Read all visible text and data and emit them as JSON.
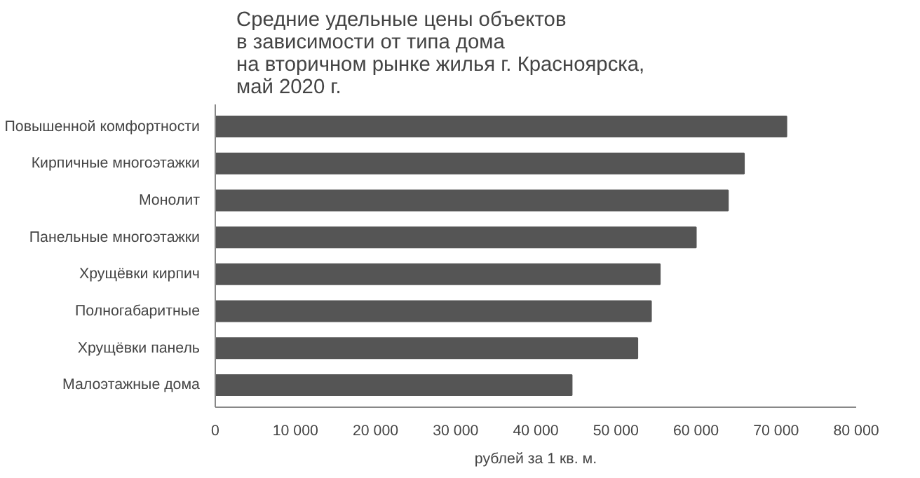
{
  "chart_data": {
    "type": "bar",
    "orientation": "horizontal",
    "title": "Средние удельные цены объектов\nв зависимости от типа дома\nна вторичном рынке жилья г. Красноярска,\nмай 2020 г.",
    "xlabel": "рублей за 1 кв. м.",
    "categories": [
      "Повышенной комфортности",
      "Кирпичные многоэтажки",
      "Монолит",
      "Панельные многоэтажки",
      "Хрущёвки кирпич",
      "Полногабаритные",
      "Хрущёвки панель",
      "Малоэтажные дома"
    ],
    "values": [
      71300,
      66000,
      64000,
      60000,
      55500,
      54400,
      52700,
      44500
    ],
    "color": "#555555",
    "xlim": [
      0,
      80000
    ],
    "xticks": [
      {
        "value": 0,
        "label": "0"
      },
      {
        "value": 10000,
        "label": "10 000"
      },
      {
        "value": 20000,
        "label": "20 000"
      },
      {
        "value": 30000,
        "label": "30 000"
      },
      {
        "value": 40000,
        "label": "40 000"
      },
      {
        "value": 50000,
        "label": "50 000"
      },
      {
        "value": 60000,
        "label": "60 000"
      },
      {
        "value": 70000,
        "label": "70 000"
      },
      {
        "value": 80000,
        "label": "80 000"
      }
    ],
    "grid": false
  }
}
